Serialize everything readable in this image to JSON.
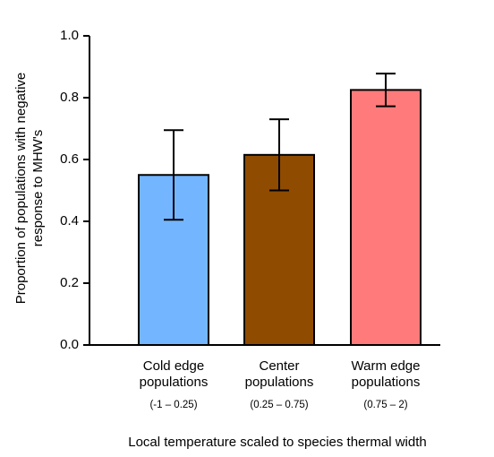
{
  "chart_data": {
    "type": "bar",
    "ylabel": [
      "Proportion of populations with negative",
      "response to MHW's"
    ],
    "xlabel": "Local temperature scaled to species thermal width",
    "categories": [
      "Cold edge populations",
      "Center populations",
      "Warm edge populations"
    ],
    "category_ranges": [
      "(-1 – 0.25)",
      "(0.25 – 0.75)",
      "(0.75 – 2)"
    ],
    "values": [
      0.55,
      0.615,
      0.825
    ],
    "errors": [
      0.145,
      0.115,
      0.053
    ],
    "colors": [
      "#74b5ff",
      "#8f4b00",
      "#ff7b7b"
    ],
    "ylim": [
      0,
      1
    ],
    "yticks": [
      {
        "value": 0,
        "label": "0.0"
      },
      0.2,
      0.4,
      0.6,
      0.8,
      {
        "value": 1,
        "label": "1.0"
      }
    ]
  }
}
